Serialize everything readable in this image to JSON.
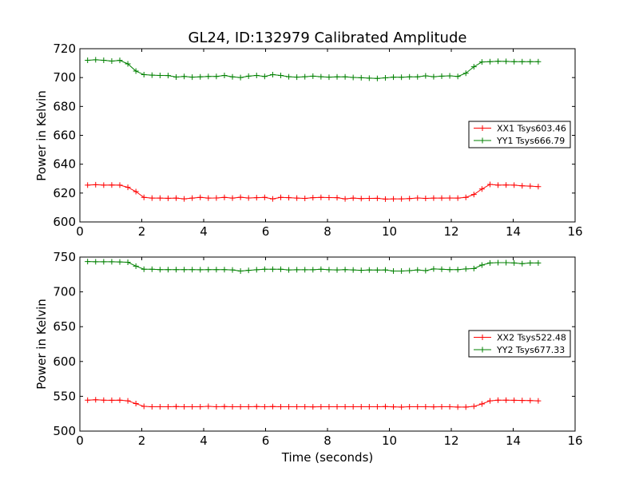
{
  "chart_data": [
    {
      "type": "line",
      "title": "GL24, ID:132979 Calibrated Amplitude",
      "xlabel": "",
      "ylabel": "Power in Kelvin",
      "xlim": [
        0,
        16
      ],
      "ylim": [
        600,
        720
      ],
      "xticks": [
        0,
        2,
        4,
        6,
        8,
        10,
        12,
        14,
        16
      ],
      "yticks": [
        600,
        620,
        640,
        660,
        680,
        700,
        720
      ],
      "grid": false,
      "legend_position": "center-right",
      "x": [
        0.25,
        0.51,
        0.77,
        1.03,
        1.29,
        1.55,
        1.81,
        2.07,
        2.33,
        2.59,
        2.85,
        3.11,
        3.37,
        3.63,
        3.89,
        4.15,
        4.41,
        4.67,
        4.93,
        5.19,
        5.45,
        5.71,
        5.97,
        6.23,
        6.49,
        6.75,
        7.01,
        7.27,
        7.53,
        7.79,
        8.05,
        8.31,
        8.57,
        8.83,
        9.09,
        9.35,
        9.61,
        9.87,
        10.13,
        10.39,
        10.65,
        10.91,
        11.17,
        11.43,
        11.69,
        11.95,
        12.21,
        12.47,
        12.73,
        12.99,
        13.25,
        13.51,
        13.77,
        14.03,
        14.29,
        14.55,
        14.81
      ],
      "series": [
        {
          "name": "XX1 Tsys603.46",
          "color": "#ff0000",
          "values": [
            625.5,
            625.8,
            625.5,
            625.6,
            625.5,
            624.0,
            621.0,
            617.0,
            616.5,
            616.5,
            616.4,
            616.5,
            616.0,
            616.5,
            617.0,
            616.5,
            616.6,
            617.0,
            616.5,
            617.1,
            616.6,
            616.8,
            617.0,
            616.0,
            617.0,
            616.8,
            616.5,
            616.3,
            616.8,
            617.0,
            616.9,
            616.8,
            616.0,
            616.5,
            616.2,
            616.3,
            616.4,
            615.8,
            616.0,
            616.0,
            616.2,
            616.6,
            616.3,
            616.5,
            616.5,
            616.6,
            616.5,
            617.0,
            619.0,
            622.8,
            626.0,
            625.5,
            625.6,
            625.5,
            625.0,
            624.8,
            624.5
          ]
        },
        {
          "name": "YY1 Tsys666.79",
          "color": "#008000",
          "values": [
            712.0,
            712.3,
            712.0,
            711.4,
            711.9,
            709.5,
            704.5,
            702.0,
            701.7,
            701.5,
            701.4,
            700.4,
            700.8,
            700.3,
            700.5,
            700.8,
            700.8,
            701.5,
            700.5,
            700.0,
            701.0,
            701.5,
            700.8,
            702.0,
            701.5,
            700.6,
            700.3,
            700.6,
            701.0,
            700.6,
            700.3,
            700.5,
            700.5,
            700.1,
            699.9,
            699.6,
            699.4,
            699.8,
            700.3,
            700.2,
            700.5,
            700.5,
            701.2,
            700.6,
            701.0,
            701.2,
            700.8,
            703.0,
            707.5,
            710.8,
            711.0,
            711.3,
            711.2,
            711.0,
            711.0,
            711.0,
            711.0
          ]
        }
      ]
    },
    {
      "type": "line",
      "title": "",
      "xlabel": "Time (seconds)",
      "ylabel": "Power in Kelvin",
      "xlim": [
        0,
        16
      ],
      "ylim": [
        500,
        750
      ],
      "xticks": [
        0,
        2,
        4,
        6,
        8,
        10,
        12,
        14,
        16
      ],
      "yticks": [
        500,
        550,
        600,
        650,
        700,
        750
      ],
      "grid": false,
      "legend_position": "center-right",
      "x": [
        0.25,
        0.51,
        0.77,
        1.03,
        1.29,
        1.55,
        1.81,
        2.07,
        2.33,
        2.59,
        2.85,
        3.11,
        3.37,
        3.63,
        3.89,
        4.15,
        4.41,
        4.67,
        4.93,
        5.19,
        5.45,
        5.71,
        5.97,
        6.23,
        6.49,
        6.75,
        7.01,
        7.27,
        7.53,
        7.79,
        8.05,
        8.31,
        8.57,
        8.83,
        9.09,
        9.35,
        9.61,
        9.87,
        10.13,
        10.39,
        10.65,
        10.91,
        11.17,
        11.43,
        11.69,
        11.95,
        12.21,
        12.47,
        12.73,
        12.99,
        13.25,
        13.51,
        13.77,
        14.03,
        14.29,
        14.55,
        14.81
      ],
      "series": [
        {
          "name": "XX2 Tsys522.48",
          "color": "#ff0000",
          "values": [
            544.5,
            545.0,
            544.5,
            544.3,
            544.5,
            543.5,
            539.5,
            535.5,
            535.0,
            535.0,
            535.0,
            535.2,
            535.0,
            535.0,
            535.0,
            535.5,
            535.0,
            535.2,
            535.0,
            535.0,
            535.0,
            535.3,
            535.0,
            535.2,
            535.0,
            535.0,
            535.0,
            535.0,
            534.8,
            535.0,
            535.0,
            535.0,
            535.0,
            535.0,
            535.0,
            535.0,
            535.0,
            535.2,
            534.8,
            534.5,
            535.0,
            535.0,
            535.0,
            534.8,
            535.0,
            535.0,
            534.5,
            534.5,
            535.5,
            539.0,
            543.5,
            544.5,
            544.5,
            544.3,
            544.0,
            543.8,
            543.5
          ]
        },
        {
          "name": "YY2 Tsys677.33",
          "color": "#008000",
          "values": [
            743.5,
            743.3,
            743.3,
            743.2,
            743.0,
            742.5,
            737.0,
            732.5,
            732.5,
            732.0,
            732.0,
            732.0,
            732.0,
            732.0,
            731.8,
            732.0,
            732.0,
            732.0,
            731.5,
            730.0,
            731.0,
            731.8,
            732.5,
            732.5,
            732.5,
            731.5,
            731.8,
            731.8,
            731.8,
            732.5,
            731.8,
            731.5,
            732.0,
            731.5,
            731.0,
            731.5,
            731.3,
            731.5,
            730.0,
            730.0,
            730.5,
            731.5,
            730.5,
            733.0,
            732.5,
            732.0,
            732.0,
            733.0,
            733.5,
            738.5,
            741.5,
            742.0,
            742.0,
            741.5,
            740.5,
            741.5,
            741.5
          ]
        }
      ]
    }
  ]
}
